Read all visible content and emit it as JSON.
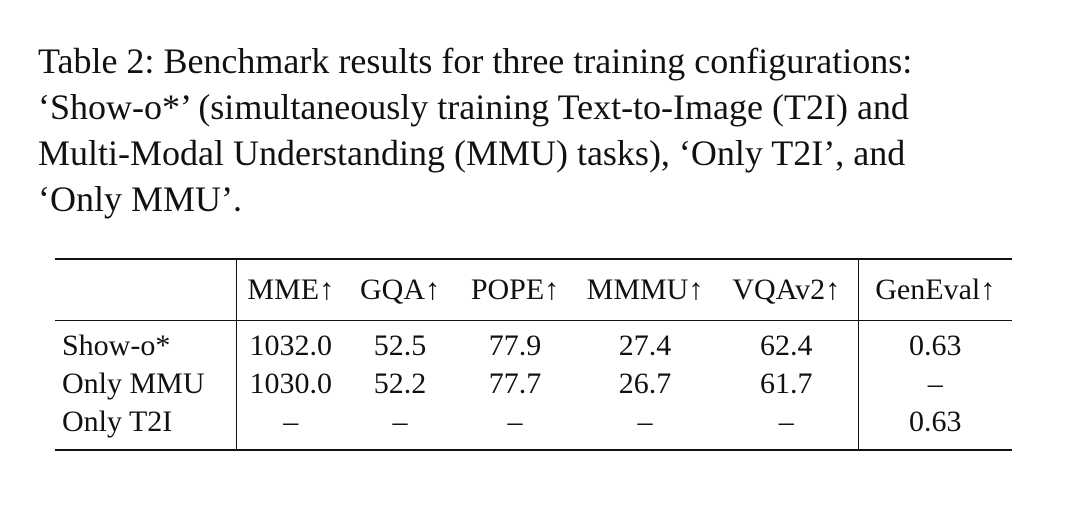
{
  "caption": {
    "lines": [
      "Table 2: Benchmark results for three training configurations:",
      "‘Show-o*’ (simultaneously training Text-to-Image (T2I) and",
      "Multi-Modal Understanding (MMU) tasks), ‘Only T2I’, and",
      "‘Only MMU’."
    ]
  },
  "table": {
    "header": [
      "MME↑",
      "GQA↑",
      "POPE↑",
      "MMMU↑",
      "VQAv2↑",
      "GenEval↑"
    ],
    "rows": [
      [
        "Show-o*",
        "1032.0",
        "52.5",
        "77.9",
        "27.4",
        "62.4",
        "0.63"
      ],
      [
        "Only MMU",
        "1030.0",
        "52.2",
        "77.7",
        "26.7",
        "61.7",
        "–"
      ],
      [
        "Only T2I",
        "–",
        "–",
        "–",
        "–",
        "–",
        "0.63"
      ]
    ]
  }
}
